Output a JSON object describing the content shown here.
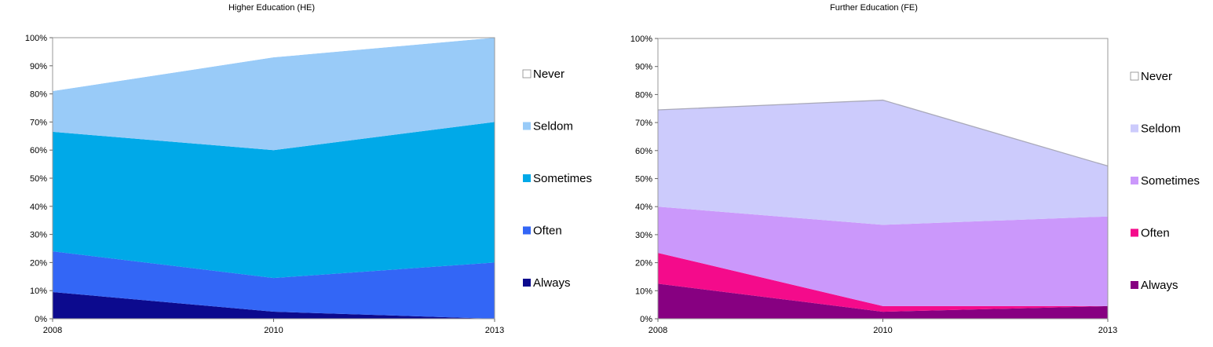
{
  "chart_data": [
    {
      "type": "area",
      "stacked": true,
      "title": "Higher Education (HE)",
      "categories": [
        "2008",
        "2010",
        "2013"
      ],
      "ylim": [
        0,
        100
      ],
      "yticks": [
        "0%",
        "10%",
        "20%",
        "30%",
        "40%",
        "50%",
        "60%",
        "70%",
        "80%",
        "90%",
        "100%"
      ],
      "legend_position": "right",
      "series": [
        {
          "name": "Always",
          "values": [
            9.5,
            2.5,
            0
          ],
          "color": "#0c0a8e"
        },
        {
          "name": "Often",
          "values": [
            14.5,
            12,
            20
          ],
          "color": "#3366f6"
        },
        {
          "name": "Sometimes",
          "values": [
            42.5,
            45.5,
            50
          ],
          "color": "#00a9e8"
        },
        {
          "name": "Seldom",
          "values": [
            14.5,
            33,
            30
          ],
          "color": "#99cbf8"
        },
        {
          "name": "Never",
          "values": [
            19,
            7,
            0
          ],
          "color": "#ffffff"
        }
      ]
    },
    {
      "type": "area",
      "stacked": true,
      "title": "Further Education (FE)",
      "categories": [
        "2008",
        "2010",
        "2013"
      ],
      "ylim": [
        0,
        100
      ],
      "yticks": [
        "0%",
        "10%",
        "20%",
        "30%",
        "40%",
        "50%",
        "60%",
        "70%",
        "80%",
        "90%",
        "100%"
      ],
      "legend_position": "right",
      "series": [
        {
          "name": "Always",
          "values": [
            12.5,
            2.5,
            4.5
          ],
          "color": "#870081"
        },
        {
          "name": "Often",
          "values": [
            11,
            2,
            0
          ],
          "color": "#f40b8b"
        },
        {
          "name": "Sometimes",
          "values": [
            16.5,
            29,
            32
          ],
          "color": "#cb98fb"
        },
        {
          "name": "Seldom",
          "values": [
            34.5,
            44.5,
            18
          ],
          "color": "#cccbfc"
        },
        {
          "name": "Never",
          "values": [
            25.5,
            22,
            45.5
          ],
          "color": "#ffffff"
        }
      ]
    }
  ]
}
